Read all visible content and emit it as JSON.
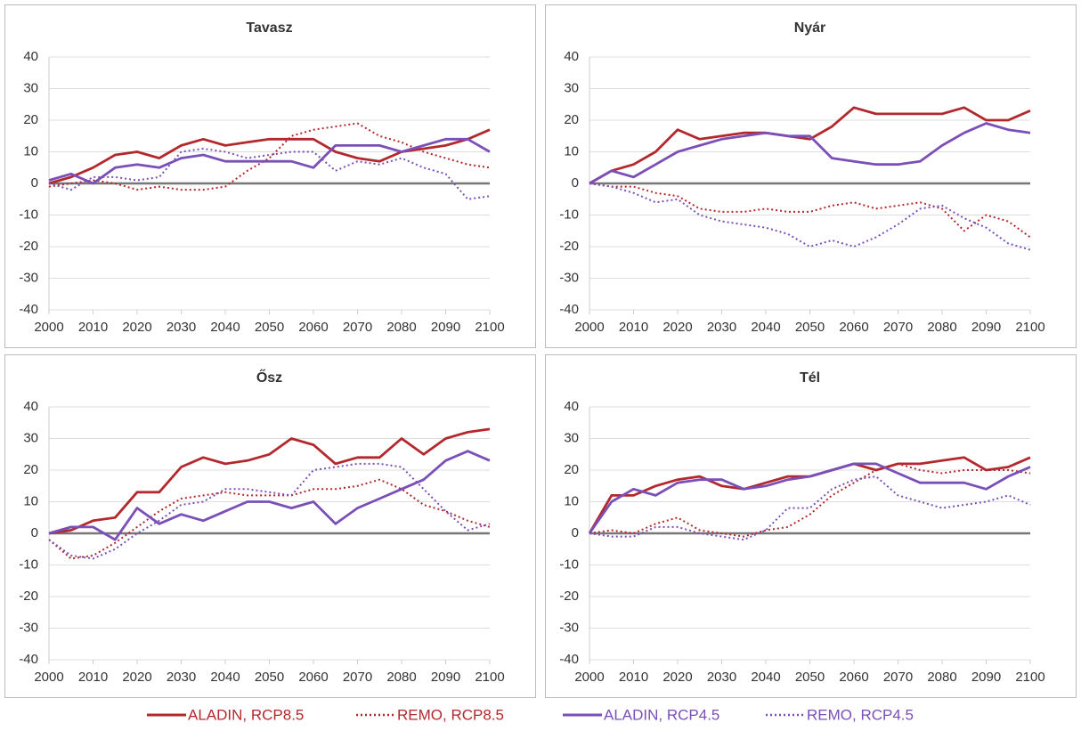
{
  "chart_data": [
    {
      "type": "line",
      "title": "Tavasz",
      "x": [
        2000,
        2005,
        2010,
        2015,
        2020,
        2025,
        2030,
        2035,
        2040,
        2045,
        2050,
        2055,
        2060,
        2065,
        2070,
        2075,
        2080,
        2085,
        2090,
        2095,
        2100
      ],
      "xlim": [
        2000,
        2100
      ],
      "xticks": [
        2000,
        2010,
        2020,
        2030,
        2040,
        2050,
        2060,
        2070,
        2080,
        2090,
        2100
      ],
      "ylim": [
        -40,
        40
      ],
      "yticks": [
        -40,
        -30,
        -20,
        -10,
        0,
        10,
        20,
        30,
        40
      ],
      "grid": true,
      "series": [
        {
          "values": [
            0,
            2,
            5,
            9,
            10,
            8,
            12,
            14,
            12,
            13,
            14,
            14,
            14,
            10,
            8,
            7,
            10,
            11,
            12,
            14,
            17
          ]
        },
        {
          "values": [
            -1,
            0,
            1,
            0,
            -2,
            -1,
            -2,
            -2,
            -1,
            4,
            8,
            15,
            17,
            18,
            19,
            15,
            13,
            10,
            8,
            6,
            5
          ]
        },
        {
          "values": [
            1,
            3,
            0,
            5,
            6,
            5,
            8,
            9,
            7,
            7,
            7,
            7,
            5,
            12,
            12,
            12,
            10,
            12,
            14,
            14,
            10
          ]
        },
        {
          "values": [
            0,
            -2,
            2,
            2,
            1,
            2,
            10,
            11,
            10,
            8,
            9,
            10,
            10,
            4,
            7,
            6,
            8,
            5,
            3,
            -5,
            -4
          ]
        }
      ]
    },
    {
      "type": "line",
      "title": "Nyár",
      "x": [
        2000,
        2005,
        2010,
        2015,
        2020,
        2025,
        2030,
        2035,
        2040,
        2045,
        2050,
        2055,
        2060,
        2065,
        2070,
        2075,
        2080,
        2085,
        2090,
        2095,
        2100
      ],
      "xlim": [
        2000,
        2100
      ],
      "xticks": [
        2000,
        2010,
        2020,
        2030,
        2040,
        2050,
        2060,
        2070,
        2080,
        2090,
        2100
      ],
      "ylim": [
        -40,
        40
      ],
      "yticks": [
        -40,
        -30,
        -20,
        -10,
        0,
        10,
        20,
        30,
        40
      ],
      "grid": true,
      "series": [
        {
          "values": [
            0,
            4,
            6,
            10,
            17,
            14,
            15,
            16,
            16,
            15,
            14,
            18,
            24,
            22,
            22,
            22,
            22,
            24,
            20,
            20,
            23
          ]
        },
        {
          "values": [
            0,
            -1,
            -1,
            -3,
            -4,
            -8,
            -9,
            -9,
            -8,
            -9,
            -9,
            -7,
            -6,
            -8,
            -7,
            -6,
            -8,
            -15,
            -10,
            -12,
            -17
          ]
        },
        {
          "values": [
            0,
            4,
            2,
            6,
            10,
            12,
            14,
            15,
            16,
            15,
            15,
            8,
            7,
            6,
            6,
            7,
            12,
            16,
            19,
            17,
            16
          ]
        },
        {
          "values": [
            0,
            -1,
            -3,
            -6,
            -5,
            -10,
            -12,
            -13,
            -14,
            -16,
            -20,
            -18,
            -20,
            -17,
            -13,
            -8,
            -7,
            -11,
            -14,
            -19,
            -21
          ]
        }
      ]
    },
    {
      "type": "line",
      "title": "Ősz",
      "x": [
        2000,
        2005,
        2010,
        2015,
        2020,
        2025,
        2030,
        2035,
        2040,
        2045,
        2050,
        2055,
        2060,
        2065,
        2070,
        2075,
        2080,
        2085,
        2090,
        2095,
        2100
      ],
      "xlim": [
        2000,
        2100
      ],
      "xticks": [
        2000,
        2010,
        2020,
        2030,
        2040,
        2050,
        2060,
        2070,
        2080,
        2090,
        2100
      ],
      "ylim": [
        -40,
        40
      ],
      "yticks": [
        -40,
        -30,
        -20,
        -10,
        0,
        10,
        20,
        30,
        40
      ],
      "grid": true,
      "series": [
        {
          "values": [
            0,
            1,
            4,
            5,
            13,
            13,
            21,
            24,
            22,
            23,
            25,
            30,
            28,
            22,
            24,
            24,
            30,
            25,
            30,
            32,
            33
          ]
        },
        {
          "values": [
            -2,
            -8,
            -7,
            -3,
            2,
            7,
            11,
            12,
            13,
            12,
            12,
            12,
            14,
            14,
            15,
            17,
            14,
            9,
            7,
            4,
            2
          ]
        },
        {
          "values": [
            0,
            2,
            2,
            -2,
            8,
            3,
            6,
            4,
            7,
            10,
            10,
            8,
            10,
            3,
            8,
            11,
            14,
            17,
            23,
            26,
            23
          ]
        },
        {
          "values": [
            -2,
            -7,
            -8,
            -5,
            0,
            4,
            9,
            10,
            14,
            14,
            13,
            12,
            20,
            21,
            22,
            22,
            21,
            14,
            7,
            1,
            3
          ]
        }
      ]
    },
    {
      "type": "line",
      "title": "Tél",
      "x": [
        2000,
        2005,
        2010,
        2015,
        2020,
        2025,
        2030,
        2035,
        2040,
        2045,
        2050,
        2055,
        2060,
        2065,
        2070,
        2075,
        2080,
        2085,
        2090,
        2095,
        2100
      ],
      "xlim": [
        2000,
        2100
      ],
      "xticks": [
        2000,
        2010,
        2020,
        2030,
        2040,
        2050,
        2060,
        2070,
        2080,
        2090,
        2100
      ],
      "ylim": [
        -40,
        40
      ],
      "yticks": [
        -40,
        -30,
        -20,
        -10,
        0,
        10,
        20,
        30,
        40
      ],
      "grid": true,
      "series": [
        {
          "values": [
            0,
            12,
            12,
            15,
            17,
            18,
            15,
            14,
            16,
            18,
            18,
            20,
            22,
            20,
            22,
            22,
            23,
            24,
            20,
            21,
            24
          ]
        },
        {
          "values": [
            0,
            1,
            0,
            3,
            5,
            1,
            0,
            -1,
            1,
            2,
            6,
            12,
            16,
            20,
            22,
            20,
            19,
            20,
            20,
            20,
            19
          ]
        },
        {
          "values": [
            0,
            10,
            14,
            12,
            16,
            17,
            17,
            14,
            15,
            17,
            18,
            20,
            22,
            22,
            19,
            16,
            16,
            16,
            14,
            18,
            21
          ]
        },
        {
          "values": [
            0,
            -1,
            -1,
            2,
            2,
            0,
            -1,
            -2,
            1,
            8,
            8,
            14,
            17,
            18,
            12,
            10,
            8,
            9,
            10,
            12,
            9
          ]
        }
      ]
    }
  ],
  "legend": [
    {
      "name": "ALADIN, RCP8.5",
      "color": "#b3282d",
      "style": "solid"
    },
    {
      "name": "REMO, RCP8.5",
      "color": "#b3282d",
      "style": "dotted"
    },
    {
      "name": "ALADIN, RCP4.5",
      "color": "#7a4fb8",
      "style": "solid"
    },
    {
      "name": "REMO, RCP4.5",
      "color": "#7a4fb8",
      "style": "dotted"
    }
  ]
}
